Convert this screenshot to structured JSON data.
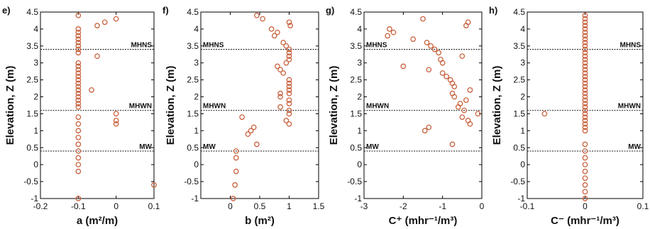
{
  "chart_data": [
    {
      "type": "scatter",
      "panel_label": "e)",
      "xlabel": "a (m²/m)",
      "ylabel": "Elevation, Z (m)",
      "xlim": [
        -0.2,
        0.1
      ],
      "ylim": [
        -1,
        4.5
      ],
      "xticks": [
        "-0.2",
        "-0.1",
        "0",
        "0.1"
      ],
      "yticks": [
        "-1",
        "-0.5",
        "0",
        "0.5",
        "1",
        "1.5",
        "2",
        "2.5",
        "3",
        "3.5",
        "4",
        "4.5"
      ],
      "ref_lines": [
        {
          "label": "MHNS",
          "y": 3.4
        },
        {
          "label": "MHWN",
          "y": 1.6
        },
        {
          "label": "MW",
          "y": 0.4
        }
      ],
      "points": [
        [
          -0.1,
          4.4
        ],
        [
          -0.05,
          4.1
        ],
        [
          -0.03,
          4.2
        ],
        [
          0.0,
          4.3
        ],
        [
          -0.1,
          4.0
        ],
        [
          -0.1,
          3.9
        ],
        [
          -0.1,
          3.8
        ],
        [
          -0.1,
          3.7
        ],
        [
          -0.1,
          3.6
        ],
        [
          -0.1,
          3.5
        ],
        [
          -0.1,
          3.4
        ],
        [
          -0.1,
          3.3
        ],
        [
          -0.05,
          3.2
        ],
        [
          -0.1,
          3.0
        ],
        [
          -0.1,
          2.9
        ],
        [
          -0.1,
          2.8
        ],
        [
          -0.1,
          2.7
        ],
        [
          -0.1,
          2.6
        ],
        [
          -0.1,
          2.5
        ],
        [
          -0.1,
          2.4
        ],
        [
          -0.1,
          2.3
        ],
        [
          -0.1,
          2.2
        ],
        [
          -0.065,
          2.2
        ],
        [
          -0.1,
          2.1
        ],
        [
          -0.1,
          2.0
        ],
        [
          -0.1,
          1.9
        ],
        [
          -0.1,
          1.8
        ],
        [
          -0.1,
          1.7
        ],
        [
          0.0,
          1.5
        ],
        [
          0.0,
          1.3
        ],
        [
          0.0,
          1.2
        ],
        [
          -0.1,
          1.4
        ],
        [
          -0.1,
          1.2
        ],
        [
          -0.1,
          1.0
        ],
        [
          -0.1,
          0.8
        ],
        [
          -0.1,
          0.6
        ],
        [
          -0.1,
          0.4
        ],
        [
          -0.1,
          0.2
        ],
        [
          -0.1,
          0.0
        ],
        [
          -0.1,
          -0.2
        ],
        [
          0.1,
          -0.6
        ],
        [
          -0.1,
          -1.0
        ]
      ]
    },
    {
      "type": "scatter",
      "panel_label": "f)",
      "xlabel": "b (m²)",
      "ylabel": "Elevation, Z (m)",
      "xlim": [
        -0.5,
        1.5
      ],
      "ylim": [
        -1,
        4.5
      ],
      "xticks": [
        "0",
        "0.5",
        "1",
        "1.5"
      ],
      "yticks": [
        "-1",
        "-0.5",
        "0",
        "0.5",
        "1",
        "1.5",
        "2",
        "2.5",
        "3",
        "3.5",
        "4",
        "4.5"
      ],
      "ref_lines": [
        {
          "label": "MHNS",
          "y": 3.4
        },
        {
          "label": "MHWN",
          "y": 1.6
        },
        {
          "label": "MW",
          "y": 0.4
        }
      ],
      "points": [
        [
          0.45,
          4.4
        ],
        [
          0.55,
          4.3
        ],
        [
          1.0,
          4.2
        ],
        [
          1.02,
          4.1
        ],
        [
          0.7,
          4.0
        ],
        [
          0.8,
          3.9
        ],
        [
          0.75,
          3.8
        ],
        [
          0.9,
          3.6
        ],
        [
          0.95,
          3.5
        ],
        [
          1.0,
          3.4
        ],
        [
          1.0,
          3.3
        ],
        [
          1.0,
          3.2
        ],
        [
          1.0,
          3.1
        ],
        [
          0.95,
          3.0
        ],
        [
          0.8,
          2.9
        ],
        [
          0.85,
          2.8
        ],
        [
          0.9,
          2.7
        ],
        [
          1.0,
          2.5
        ],
        [
          1.0,
          2.4
        ],
        [
          1.0,
          2.3
        ],
        [
          1.0,
          2.2
        ],
        [
          1.0,
          2.1
        ],
        [
          0.85,
          2.1
        ],
        [
          0.85,
          2.0
        ],
        [
          1.0,
          1.9
        ],
        [
          1.0,
          1.8
        ],
        [
          0.85,
          1.7
        ],
        [
          1.0,
          1.6
        ],
        [
          1.0,
          1.5
        ],
        [
          0.2,
          1.4
        ],
        [
          0.95,
          1.3
        ],
        [
          1.0,
          1.2
        ],
        [
          0.4,
          1.1
        ],
        [
          0.35,
          1.0
        ],
        [
          0.3,
          0.9
        ],
        [
          0.45,
          0.6
        ],
        [
          0.1,
          0.4
        ],
        [
          0.1,
          0.2
        ],
        [
          0.1,
          -0.2
        ],
        [
          0.08,
          -0.6
        ],
        [
          0.05,
          -1.0
        ]
      ]
    },
    {
      "type": "scatter",
      "panel_label": "g)",
      "xlabel": "C⁺ (mhr⁻¹/m³)",
      "ylabel": "Elevation, Z (m)",
      "xlim": [
        -3,
        0
      ],
      "ylim": [
        -1,
        4.5
      ],
      "xticks": [
        "-3",
        "-2",
        "-1",
        "0"
      ],
      "yticks": [
        "-1",
        "-0.5",
        "0",
        "0.5",
        "1",
        "1.5",
        "2",
        "2.5",
        "3",
        "3.5",
        "4",
        "4.5"
      ],
      "ref_lines": [
        {
          "label": "MHNS",
          "y": 3.4
        },
        {
          "label": "MHWN",
          "y": 1.6
        },
        {
          "label": "MW",
          "y": 0.4
        }
      ],
      "points": [
        [
          -1.5,
          4.3
        ],
        [
          -0.35,
          4.2
        ],
        [
          -0.4,
          4.1
        ],
        [
          -2.35,
          4.0
        ],
        [
          -2.25,
          3.9
        ],
        [
          -2.4,
          3.8
        ],
        [
          -1.75,
          3.7
        ],
        [
          -1.4,
          3.6
        ],
        [
          -1.3,
          3.5
        ],
        [
          -1.2,
          3.4
        ],
        [
          -1.1,
          3.3
        ],
        [
          -0.5,
          3.2
        ],
        [
          -1.05,
          3.1
        ],
        [
          -1.0,
          3.0
        ],
        [
          -2.0,
          2.9
        ],
        [
          -1.35,
          2.8
        ],
        [
          -1.0,
          2.7
        ],
        [
          -0.9,
          2.6
        ],
        [
          -0.8,
          2.5
        ],
        [
          -0.75,
          2.4
        ],
        [
          -0.7,
          2.3
        ],
        [
          -0.3,
          2.2
        ],
        [
          -0.75,
          2.1
        ],
        [
          -0.7,
          2.0
        ],
        [
          -0.4,
          1.9
        ],
        [
          -0.55,
          1.8
        ],
        [
          -0.6,
          1.7
        ],
        [
          -0.45,
          1.6
        ],
        [
          -0.1,
          1.5
        ],
        [
          -0.5,
          1.4
        ],
        [
          -0.35,
          1.3
        ],
        [
          -0.3,
          1.2
        ],
        [
          -1.35,
          1.1
        ],
        [
          -1.45,
          1.0
        ],
        [
          -0.75,
          0.6
        ]
      ]
    },
    {
      "type": "scatter",
      "panel_label": "h)",
      "xlabel": "C⁻ (mhr⁻¹/m³)",
      "ylabel": "Elevation, Z (m)",
      "xlim": [
        -0.1,
        0.1
      ],
      "ylim": [
        -1,
        4.5
      ],
      "xticks": [
        "-0.1",
        "0",
        "0.1"
      ],
      "yticks": [
        "-1",
        "-0.5",
        "0",
        "0.5",
        "1",
        "1.5",
        "2",
        "2.5",
        "3",
        "3.5",
        "4",
        "4.5"
      ],
      "ref_lines": [
        {
          "label": "MHNS",
          "y": 3.4
        },
        {
          "label": "MHWN",
          "y": 1.6
        },
        {
          "label": "MW",
          "y": 0.4
        }
      ],
      "points": [
        [
          0.0,
          4.4
        ],
        [
          0.0,
          4.3
        ],
        [
          0.0,
          4.2
        ],
        [
          0.0,
          4.1
        ],
        [
          0.0,
          4.0
        ],
        [
          0.0,
          3.9
        ],
        [
          0.0,
          3.8
        ],
        [
          0.0,
          3.7
        ],
        [
          0.0,
          3.6
        ],
        [
          0.0,
          3.5
        ],
        [
          0.0,
          3.4
        ],
        [
          0.0,
          3.3
        ],
        [
          0.0,
          3.2
        ],
        [
          0.0,
          3.1
        ],
        [
          0.0,
          3.0
        ],
        [
          0.0,
          2.9
        ],
        [
          0.0,
          2.8
        ],
        [
          0.0,
          2.7
        ],
        [
          0.0,
          2.6
        ],
        [
          0.0,
          2.5
        ],
        [
          0.0,
          2.4
        ],
        [
          0.0,
          2.3
        ],
        [
          0.0,
          2.2
        ],
        [
          0.0,
          2.1
        ],
        [
          0.0,
          2.0
        ],
        [
          0.0,
          1.9
        ],
        [
          0.0,
          1.8
        ],
        [
          0.0,
          1.7
        ],
        [
          0.0,
          1.6
        ],
        [
          0.0,
          1.5
        ],
        [
          0.0,
          1.4
        ],
        [
          0.0,
          1.3
        ],
        [
          0.0,
          1.2
        ],
        [
          0.0,
          1.1
        ],
        [
          0.0,
          1.0
        ],
        [
          -0.07,
          1.5
        ],
        [
          0.0,
          0.6
        ],
        [
          0.0,
          0.4
        ],
        [
          0.0,
          0.2
        ],
        [
          0.0,
          0.0
        ],
        [
          0.0,
          -0.2
        ],
        [
          0.0,
          -0.4
        ],
        [
          0.0,
          -0.6
        ],
        [
          0.0,
          -0.8
        ],
        [
          0.0,
          -1.0
        ]
      ]
    }
  ],
  "style": {
    "marker_color": "#c8623e",
    "ref_line_color": "#333333",
    "axis_color": "#000000"
  }
}
